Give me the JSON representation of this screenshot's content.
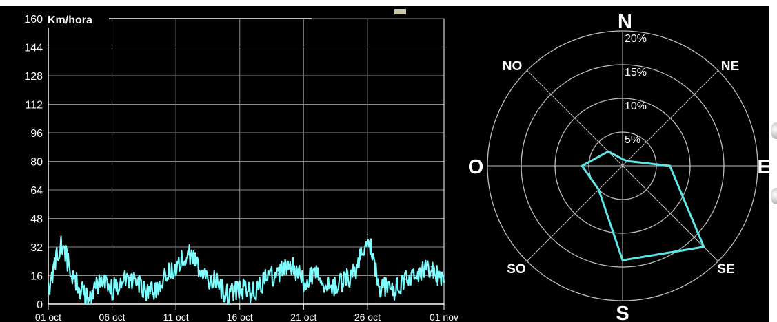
{
  "chart_data": [
    {
      "type": "line",
      "ylabel": "Km/hora",
      "ylim": [
        0,
        160
      ],
      "yticks": [
        "0",
        "16",
        "32",
        "48",
        "64",
        "80",
        "96",
        "112",
        "128",
        "144",
        "160"
      ],
      "xticks": [
        "01 oct",
        "06 oct",
        "11 oct",
        "16 oct",
        "21 oct",
        "26 oct",
        "01 nov"
      ],
      "xlim": [
        "01 oct",
        "01 nov"
      ],
      "grid": true,
      "series": [
        {
          "color": "#7fffff",
          "x": [
            "01 oct",
            "02 oct",
            "03 oct",
            "04 oct",
            "05 oct",
            "06 oct",
            "07 oct",
            "08 oct",
            "09 oct",
            "10 oct",
            "11 oct",
            "12 oct",
            "13 oct",
            "14 oct",
            "15 oct",
            "16 oct",
            "17 oct",
            "18 oct",
            "19 oct",
            "20 oct",
            "21 oct",
            "22 oct",
            "23 oct",
            "24 oct",
            "25 oct",
            "26 oct",
            "27 oct",
            "28 oct",
            "29 oct",
            "30 oct",
            "31 oct",
            "01 nov"
          ],
          "y": [
            8,
            35,
            14,
            3,
            12,
            8,
            14,
            11,
            6,
            13,
            22,
            29,
            17,
            13,
            5,
            9,
            6,
            14,
            17,
            22,
            13,
            17,
            9,
            12,
            17,
            39,
            10,
            7,
            14,
            18,
            21,
            12
          ]
        }
      ]
    },
    {
      "type": "radar",
      "directions": [
        {
          "label": "N",
          "value": 1
        },
        {
          "label": "NE",
          "value": 1
        },
        {
          "label": "E",
          "value": 7
        },
        {
          "label": "SE",
          "value": 17
        },
        {
          "label": "S",
          "value": 14
        },
        {
          "label": "SO",
          "value": 5
        },
        {
          "label": "O",
          "value": 6
        },
        {
          "label": "NO",
          "value": 3
        }
      ],
      "ring_labels": [
        "5%",
        "10%",
        "15%",
        "20%"
      ],
      "rmax": 20,
      "line_color": "#5ee6e6"
    }
  ]
}
